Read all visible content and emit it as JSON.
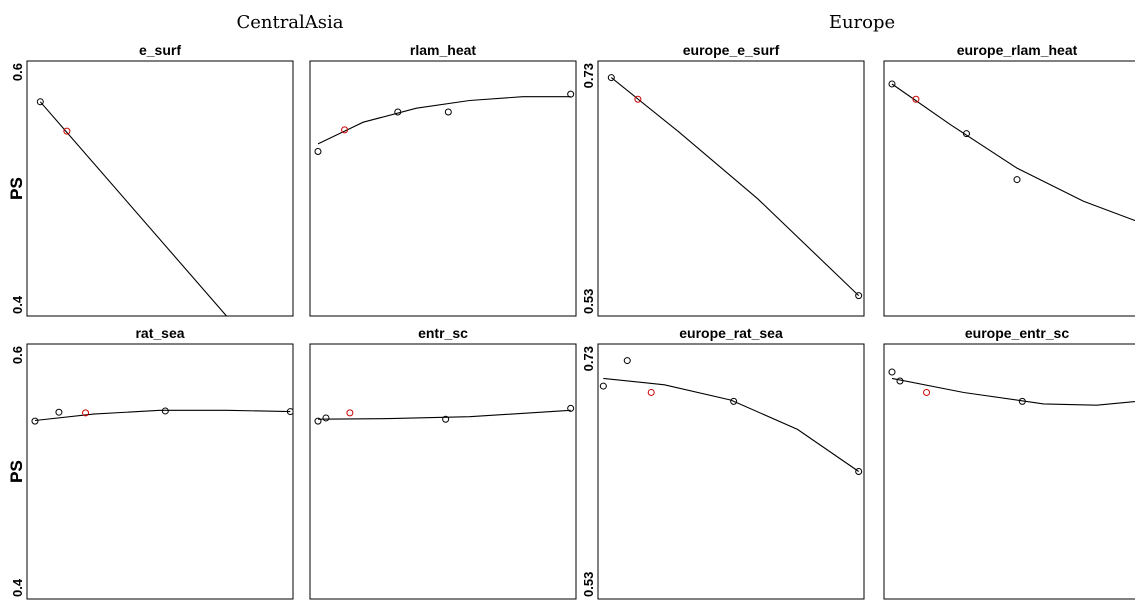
{
  "groups": [
    {
      "title": "CentralAsia"
    },
    {
      "title": "Europe"
    }
  ],
  "colors": {
    "default_point": "#000000",
    "highlight_point": "#cc0000",
    "line": "#000000"
  },
  "chart_data": [
    {
      "type": "scatter",
      "title": "e_surf",
      "group": "CentralAsia",
      "xlabel": "",
      "ylabel": "PS",
      "ylim": [
        0.4,
        0.6
      ],
      "yticks": [
        "0.4",
        "0.6"
      ],
      "xlim": [
        0,
        1
      ],
      "points": [
        {
          "x": 0.05,
          "y": 0.568
        },
        {
          "x": 0.15,
          "y": 0.545,
          "highlight": true
        }
      ],
      "fit": [
        [
          0.05,
          0.568
        ],
        [
          0.75,
          0.4
        ]
      ]
    },
    {
      "type": "scatter",
      "title": "rlam_heat",
      "group": "CentralAsia",
      "xlabel": "",
      "ylabel": "",
      "ylim": [
        0.4,
        0.6
      ],
      "yticks": [],
      "xlim": [
        0,
        1
      ],
      "points": [
        {
          "x": 0.03,
          "y": 0.529
        },
        {
          "x": 0.13,
          "y": 0.546,
          "highlight": true
        },
        {
          "x": 0.33,
          "y": 0.56
        },
        {
          "x": 0.52,
          "y": 0.56
        },
        {
          "x": 0.98,
          "y": 0.574
        }
      ],
      "fit": [
        [
          0.03,
          0.535
        ],
        [
          0.2,
          0.552
        ],
        [
          0.4,
          0.563
        ],
        [
          0.6,
          0.569
        ],
        [
          0.8,
          0.572
        ],
        [
          0.98,
          0.572
        ]
      ]
    },
    {
      "type": "scatter",
      "title": "europe_e_surf",
      "group": "Europe",
      "xlabel": "",
      "ylabel": "PS",
      "ylim": [
        0.53,
        0.73
      ],
      "yticks": [
        "0.53",
        "0.73"
      ],
      "xlim": [
        0,
        1
      ],
      "points": [
        {
          "x": 0.05,
          "y": 0.717
        },
        {
          "x": 0.15,
          "y": 0.7,
          "highlight": true
        },
        {
          "x": 0.98,
          "y": 0.546
        }
      ],
      "fit": [
        [
          0.05,
          0.717
        ],
        [
          0.3,
          0.675
        ],
        [
          0.6,
          0.622
        ],
        [
          0.98,
          0.546
        ]
      ]
    },
    {
      "type": "scatter",
      "title": "europe_rlam_heat",
      "group": "Europe",
      "xlabel": "",
      "ylabel": "",
      "ylim": [
        0.53,
        0.73
      ],
      "yticks": [],
      "xlim": [
        0,
        1
      ],
      "points": [
        {
          "x": 0.03,
          "y": 0.712
        },
        {
          "x": 0.12,
          "y": 0.7,
          "highlight": true
        },
        {
          "x": 0.31,
          "y": 0.673
        },
        {
          "x": 0.5,
          "y": 0.637
        },
        {
          "x": 0.98,
          "y": 0.602
        }
      ],
      "fit": [
        [
          0.03,
          0.712
        ],
        [
          0.25,
          0.68
        ],
        [
          0.5,
          0.646
        ],
        [
          0.75,
          0.62
        ],
        [
          0.98,
          0.602
        ]
      ]
    },
    {
      "type": "scatter",
      "title": "rat_sea",
      "group": "CentralAsia",
      "xlabel": "",
      "ylabel": "PS",
      "ylim": [
        0.4,
        0.6
      ],
      "yticks": [
        "0.4",
        "0.6"
      ],
      "xlim": [
        0,
        1
      ],
      "points": [
        {
          "x": 0.03,
          "y": 0.5395
        },
        {
          "x": 0.12,
          "y": 0.5465
        },
        {
          "x": 0.22,
          "y": 0.546,
          "highlight": true
        },
        {
          "x": 0.52,
          "y": 0.5475
        },
        {
          "x": 0.99,
          "y": 0.547
        }
      ],
      "fit": [
        [
          0.03,
          0.54
        ],
        [
          0.25,
          0.545
        ],
        [
          0.5,
          0.548
        ],
        [
          0.75,
          0.548
        ],
        [
          0.99,
          0.547
        ]
      ]
    },
    {
      "type": "scatter",
      "title": "entr_sc",
      "group": "CentralAsia",
      "xlabel": "",
      "ylabel": "",
      "ylim": [
        0.4,
        0.6
      ],
      "yticks": [],
      "xlim": [
        0,
        1
      ],
      "points": [
        {
          "x": 0.03,
          "y": 0.5395
        },
        {
          "x": 0.06,
          "y": 0.542
        },
        {
          "x": 0.15,
          "y": 0.546,
          "highlight": true
        },
        {
          "x": 0.51,
          "y": 0.541
        },
        {
          "x": 0.98,
          "y": 0.5495
        }
      ],
      "fit": [
        [
          0.03,
          0.541
        ],
        [
          0.3,
          0.5415
        ],
        [
          0.6,
          0.543
        ],
        [
          0.98,
          0.548
        ]
      ]
    },
    {
      "type": "scatter",
      "title": "europe_rat_sea",
      "group": "Europe",
      "xlabel": "",
      "ylabel": "PS",
      "ylim": [
        0.53,
        0.73
      ],
      "yticks": [
        "0.53",
        "0.73"
      ],
      "xlim": [
        0,
        1
      ],
      "points": [
        {
          "x": 0.02,
          "y": 0.697
        },
        {
          "x": 0.11,
          "y": 0.717
        },
        {
          "x": 0.2,
          "y": 0.692,
          "highlight": true
        },
        {
          "x": 0.51,
          "y": 0.685
        },
        {
          "x": 0.98,
          "y": 0.63
        }
      ],
      "fit": [
        [
          0.02,
          0.703
        ],
        [
          0.25,
          0.698
        ],
        [
          0.5,
          0.686
        ],
        [
          0.75,
          0.663
        ],
        [
          0.98,
          0.63
        ]
      ]
    },
    {
      "type": "scatter",
      "title": "europe_entr_sc",
      "group": "Europe",
      "xlabel": "",
      "ylabel": "",
      "ylim": [
        0.53,
        0.73
      ],
      "yticks": [],
      "xlim": [
        0,
        1
      ],
      "points": [
        {
          "x": 0.03,
          "y": 0.708
        },
        {
          "x": 0.06,
          "y": 0.701
        },
        {
          "x": 0.16,
          "y": 0.692,
          "highlight": true
        },
        {
          "x": 0.52,
          "y": 0.685
        },
        {
          "x": 1.0,
          "y": 0.686
        }
      ],
      "fit": [
        [
          0.03,
          0.703
        ],
        [
          0.3,
          0.692
        ],
        [
          0.6,
          0.683
        ],
        [
          0.8,
          0.682
        ],
        [
          1.0,
          0.686
        ]
      ]
    }
  ]
}
